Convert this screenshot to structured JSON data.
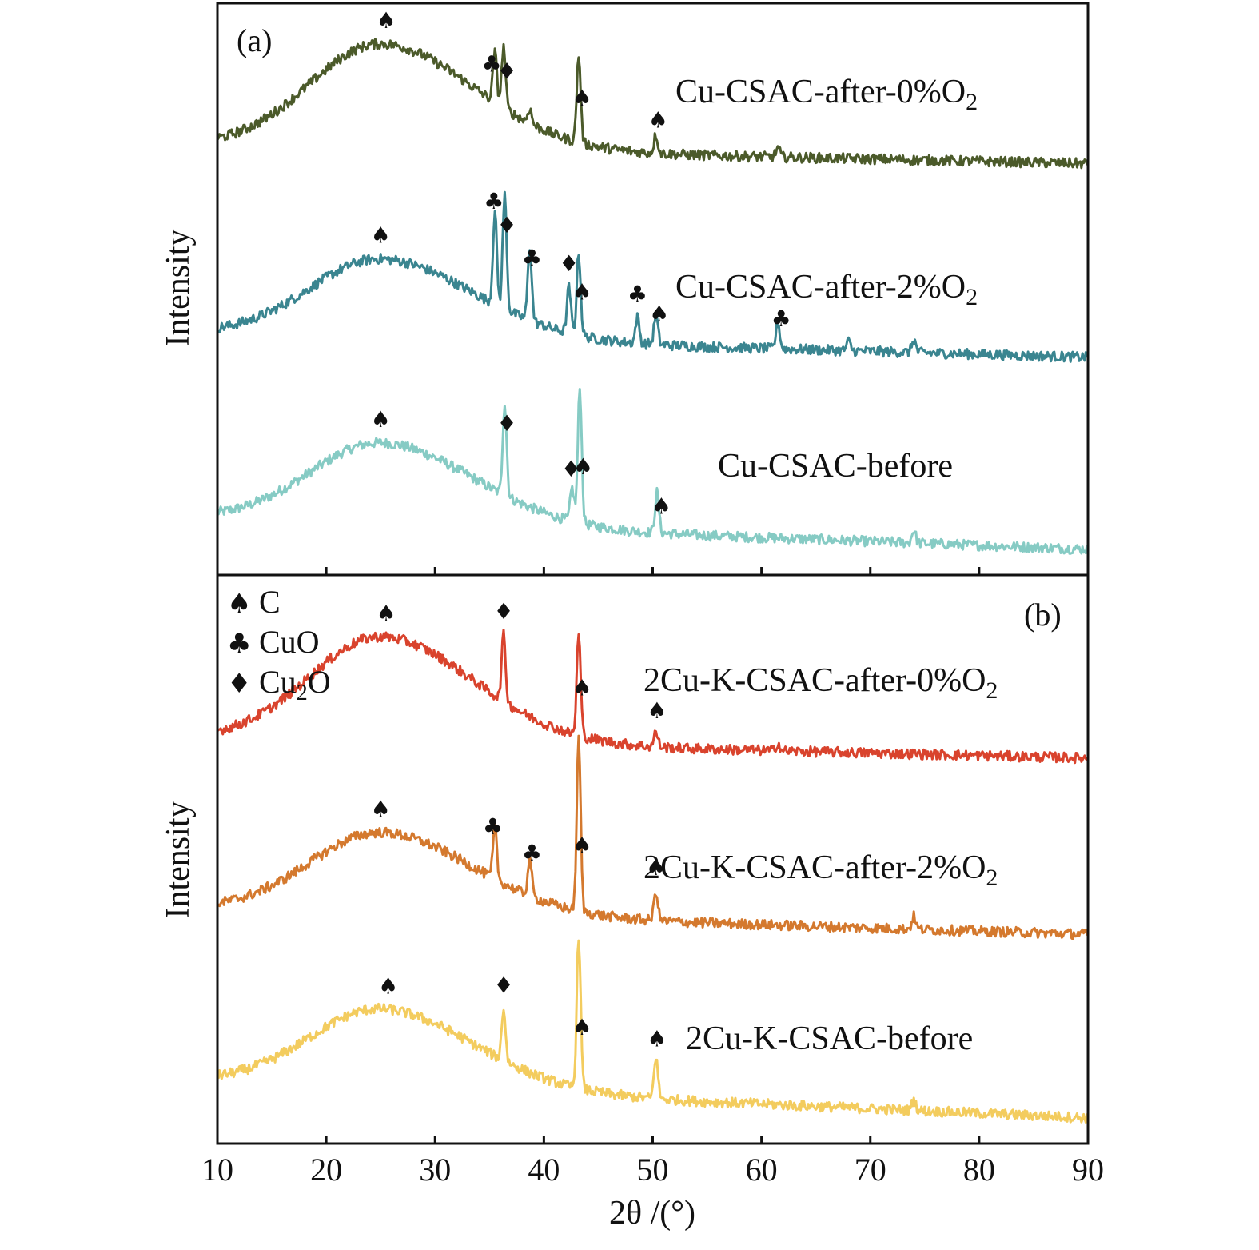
{
  "chart_data": [
    {
      "panel": "(a)",
      "type": "line",
      "xlabel": "2θ /(°)",
      "ylabel": "Intensity",
      "xlim": [
        10,
        90
      ],
      "xticks": [
        10,
        20,
        30,
        40,
        50,
        60,
        70,
        80,
        90
      ],
      "series": [
        {
          "name": "Cu-CSAC-after-0%O",
          "name_sub": "2",
          "color": "#86cbc4",
          "baseline_start": 0.31,
          "baseline_end": 0.14,
          "hump": 0.44,
          "peaks": [
            {
              "x": 36.4,
              "h": 0.5
            },
            {
              "x": 42.6,
              "h": 0.18
            },
            {
              "x": 43.3,
              "h": 0.73
            },
            {
              "x": 50.4,
              "h": 0.22
            },
            {
              "x": 74.0,
              "h": 0.07
            }
          ],
          "markers": [
            {
              "x": 25.0,
              "sym": "C"
            },
            {
              "x": 36.6,
              "sym": "Cu2O"
            },
            {
              "x": 42.5,
              "sym": "Cu2O"
            },
            {
              "x": 43.6,
              "sym": "C"
            },
            {
              "x": 50.8,
              "sym": "C"
            }
          ]
        },
        {
          "name": "Cu-CSAC-after-2%O",
          "name_sub": "2",
          "color": "#3a8590",
          "baseline_start": 0.27,
          "baseline_end": 0.14,
          "hump": 0.43,
          "peaks": [
            {
              "x": 35.5,
              "h": 0.5
            },
            {
              "x": 36.4,
              "h": 0.62
            },
            {
              "x": 38.7,
              "h": 0.4
            },
            {
              "x": 42.3,
              "h": 0.25
            },
            {
              "x": 43.2,
              "h": 0.45
            },
            {
              "x": 48.6,
              "h": 0.14
            },
            {
              "x": 50.3,
              "h": 0.16
            },
            {
              "x": 61.5,
              "h": 0.14
            },
            {
              "x": 68.0,
              "h": 0.05
            },
            {
              "x": 74.0,
              "h": 0.07
            }
          ],
          "markers": [
            {
              "x": 25.0,
              "sym": "C"
            },
            {
              "x": 35.4,
              "sym": "CuO"
            },
            {
              "x": 36.6,
              "sym": "Cu2O"
            },
            {
              "x": 38.9,
              "sym": "CuO"
            },
            {
              "x": 42.3,
              "sym": "Cu2O"
            },
            {
              "x": 43.5,
              "sym": "C"
            },
            {
              "x": 48.6,
              "sym": "CuO"
            },
            {
              "x": 50.6,
              "sym": "C"
            },
            {
              "x": 61.8,
              "sym": "CuO"
            }
          ]
        },
        {
          "name": "Cu-CSAC-before",
          "name_sub": "",
          "color": "#4b5a2a",
          "baseline_start": 0.25,
          "baseline_end": 0.15,
          "hump": 0.57,
          "peaks": [
            {
              "x": 35.5,
              "h": 0.27
            },
            {
              "x": 36.3,
              "h": 0.33
            },
            {
              "x": 38.7,
              "h": 0.08
            },
            {
              "x": 43.2,
              "h": 0.47
            },
            {
              "x": 50.3,
              "h": 0.1
            },
            {
              "x": 61.5,
              "h": 0.05
            }
          ],
          "markers": [
            {
              "x": 25.5,
              "sym": "C"
            },
            {
              "x": 35.2,
              "sym": "CuO"
            },
            {
              "x": 36.6,
              "sym": "Cu2O"
            },
            {
              "x": 43.5,
              "sym": "C"
            },
            {
              "x": 50.5,
              "sym": "C"
            }
          ]
        }
      ]
    },
    {
      "panel": "(b)",
      "type": "line",
      "xlabel": "2θ /(°)",
      "ylabel": "Intensity",
      "xlim": [
        10,
        90
      ],
      "xticks": [
        10,
        20,
        30,
        40,
        50,
        60,
        70,
        80,
        90
      ],
      "legend": {
        "position": "top-left",
        "entries": [
          {
            "sym": "C",
            "label": "C"
          },
          {
            "sym": "CuO",
            "label": "CuO"
          },
          {
            "sym": "Cu2O",
            "label": "Cu",
            "sub": "2",
            "after": "O"
          }
        ]
      },
      "series": [
        {
          "name": "2Cu-K-CSAC-after-0%O",
          "name_sub": "2",
          "color": "#f3cc5e",
          "baseline_start": 0.34,
          "baseline_end": 0.14,
          "hump": 0.43,
          "peaks": [
            {
              "x": 36.3,
              "h": 0.28
            },
            {
              "x": 43.2,
              "h": 0.83
            },
            {
              "x": 50.3,
              "h": 0.23
            },
            {
              "x": 74.0,
              "h": 0.06
            }
          ],
          "markers": [
            {
              "x": 25.7,
              "sym": "C"
            },
            {
              "x": 36.3,
              "sym": "Cu2O"
            },
            {
              "x": 43.5,
              "sym": "C"
            },
            {
              "x": 50.4,
              "sym": "C"
            }
          ]
        },
        {
          "name": "2Cu-K-CSAC-after-2%O",
          "name_sub": "2",
          "color": "#d4792e",
          "baseline_start": 0.3,
          "baseline_end": 0.16,
          "hump": 0.44,
          "peaks": [
            {
              "x": 35.5,
              "h": 0.28
            },
            {
              "x": 38.7,
              "h": 0.2
            },
            {
              "x": 43.2,
              "h": 0.93
            },
            {
              "x": 50.3,
              "h": 0.16
            },
            {
              "x": 74.0,
              "h": 0.07
            }
          ],
          "markers": [
            {
              "x": 25.0,
              "sym": "C"
            },
            {
              "x": 35.3,
              "sym": "CuO"
            },
            {
              "x": 38.9,
              "sym": "CuO"
            },
            {
              "x": 43.5,
              "sym": "C"
            },
            {
              "x": 50.3,
              "sym": "C"
            }
          ]
        },
        {
          "name": "2Cu-K-CSAC-before",
          "name_sub": "",
          "color": "#d9432d",
          "baseline_start": 0.25,
          "baseline_end": 0.14,
          "hump": 0.57,
          "peaks": [
            {
              "x": 36.3,
              "h": 0.36
            },
            {
              "x": 43.2,
              "h": 0.55
            },
            {
              "x": 50.3,
              "h": 0.08
            },
            {
              "x": 61.5,
              "h": 0.04
            }
          ],
          "markers": [
            {
              "x": 25.5,
              "sym": "C"
            },
            {
              "x": 36.3,
              "sym": "Cu2O"
            },
            {
              "x": 43.5,
              "sym": "C"
            },
            {
              "x": 50.4,
              "sym": "C"
            }
          ]
        }
      ]
    }
  ],
  "symbols": {
    "C": "♠",
    "CuO": "♣",
    "Cu2O": "♦"
  }
}
